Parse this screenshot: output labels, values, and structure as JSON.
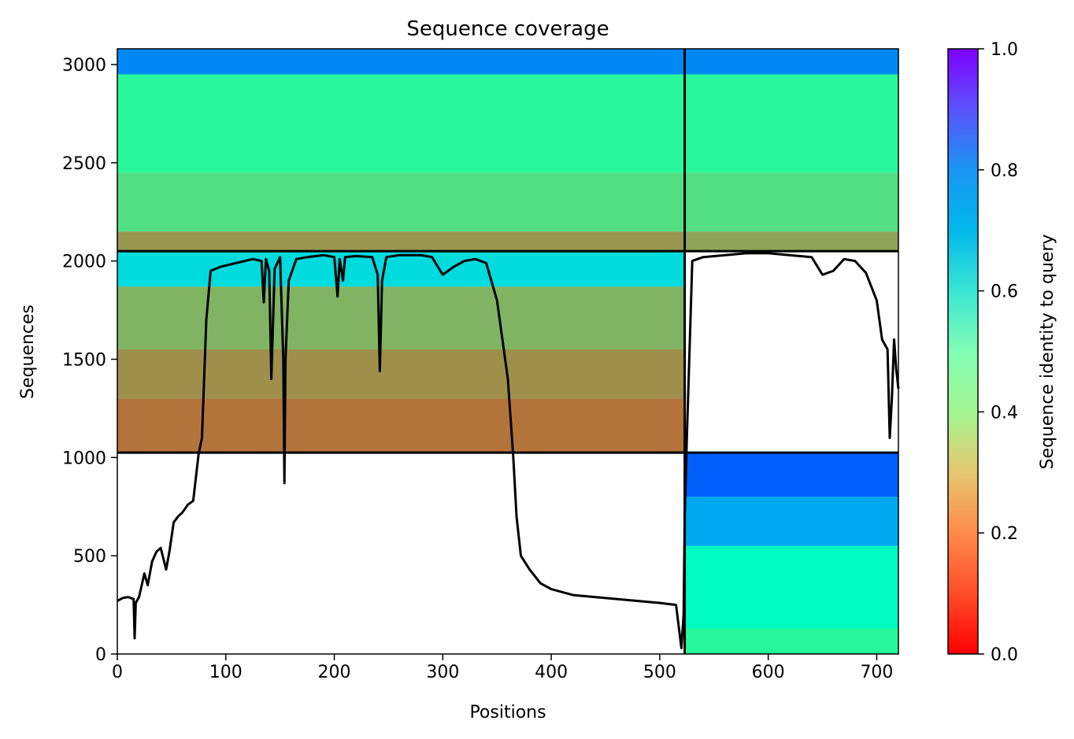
{
  "chart_data": {
    "type": "heatmap",
    "title": "Sequence coverage",
    "xlabel": "Positions",
    "ylabel": "Sequences",
    "xlim": [
      0,
      720
    ],
    "ylim": [
      0,
      3080
    ],
    "xticks": [
      0,
      100,
      200,
      300,
      400,
      500,
      600,
      700
    ],
    "yticks": [
      0,
      500,
      1000,
      1500,
      2000,
      2500,
      3000
    ],
    "colorbar": {
      "label": "Sequence identity to query",
      "range": [
        0,
        1
      ],
      "ticks": [
        "0.0",
        "0.2",
        "0.4",
        "0.6",
        "0.8",
        "1.0"
      ],
      "colormap": "rainbow_r"
    },
    "divider_x": 523,
    "divider_y": [
      1025,
      2050
    ],
    "blocks": [
      {
        "x": [
          523,
          720
        ],
        "y": [
          0,
          1025
        ],
        "bands": [
          {
            "y": [
              0,
              130
            ],
            "identity": 0.42
          },
          {
            "y": [
              130,
              550
            ],
            "identity": 0.55
          },
          {
            "y": [
              550,
              800
            ],
            "identity": 0.77
          },
          {
            "y": [
              800,
              1025
            ],
            "identity": 0.88
          }
        ]
      },
      {
        "x": [
          0,
          523
        ],
        "y": [
          1025,
          2050
        ],
        "bands": [
          {
            "y": [
              1025,
              1300
            ],
            "identity": 0.15
          },
          {
            "y": [
              1300,
              1550
            ],
            "identity": 0.19
          },
          {
            "y": [
              1550,
              1870
            ],
            "identity": 0.25
          },
          {
            "y": [
              1870,
              2050
            ],
            "identity": 0.67
          }
        ]
      },
      {
        "x": [
          523,
          720
        ],
        "y": [
          2050,
          2950
        ],
        "bands": [
          {
            "y": [
              2050,
              2150
            ],
            "identity": 0.22
          },
          {
            "y": [
              2150,
              2450
            ],
            "identity": 0.34
          },
          {
            "y": [
              2450,
              2950
            ],
            "identity": 0.42
          }
        ]
      },
      {
        "x": [
          0,
          523
        ],
        "y": [
          2050,
          2950
        ],
        "bands": [
          {
            "y": [
              2050,
              2150
            ],
            "identity": 0.2
          },
          {
            "y": [
              2150,
              2450
            ],
            "identity": 0.34
          },
          {
            "y": [
              2450,
              2950
            ],
            "identity": 0.42
          }
        ]
      },
      {
        "x": [
          0,
          720
        ],
        "y": [
          2950,
          3080
        ],
        "bands": [
          {
            "y": [
              2950,
              3080
            ],
            "identity": 0.82
          }
        ]
      }
    ],
    "coverage_line": {
      "x": [
        0,
        5,
        10,
        15,
        16,
        17,
        20,
        25,
        28,
        32,
        36,
        40,
        45,
        48,
        52,
        56,
        60,
        65,
        70,
        75,
        78,
        82,
        86,
        95,
        110,
        125,
        133,
        135,
        137,
        140,
        142,
        145,
        150,
        153,
        154,
        155,
        158,
        165,
        175,
        190,
        200,
        203,
        205,
        208,
        210,
        220,
        235,
        240,
        242,
        244,
        248,
        260,
        280,
        290,
        300,
        310,
        320,
        330,
        340,
        350,
        355,
        360,
        365,
        368,
        372,
        380,
        390,
        400,
        420,
        440,
        460,
        480,
        500,
        515,
        520,
        522,
        523,
        525,
        530,
        540,
        560,
        580,
        600,
        620,
        640,
        650,
        660,
        670,
        680,
        690,
        700,
        705,
        710,
        712,
        714,
        716,
        718,
        720
      ],
      "y": [
        270,
        285,
        290,
        280,
        80,
        260,
        290,
        410,
        350,
        470,
        520,
        540,
        430,
        520,
        670,
        700,
        720,
        760,
        780,
        1020,
        1100,
        1700,
        1950,
        1970,
        1990,
        2010,
        2000,
        1790,
        2010,
        1950,
        1400,
        1960,
        2020,
        1500,
        870,
        1500,
        1900,
        2010,
        2020,
        2030,
        2020,
        1820,
        2010,
        1900,
        2020,
        2025,
        2020,
        1930,
        1440,
        1900,
        2020,
        2030,
        2030,
        2020,
        1930,
        1970,
        2000,
        2010,
        1990,
        1800,
        1600,
        1400,
        1000,
        700,
        500,
        430,
        360,
        330,
        300,
        290,
        280,
        270,
        260,
        250,
        30,
        200,
        700,
        1100,
        2000,
        2020,
        2030,
        2040,
        2040,
        2030,
        2020,
        1930,
        1950,
        2010,
        2000,
        1940,
        1800,
        1600,
        1550,
        1100,
        1300,
        1600,
        1450,
        1350
      ]
    }
  }
}
